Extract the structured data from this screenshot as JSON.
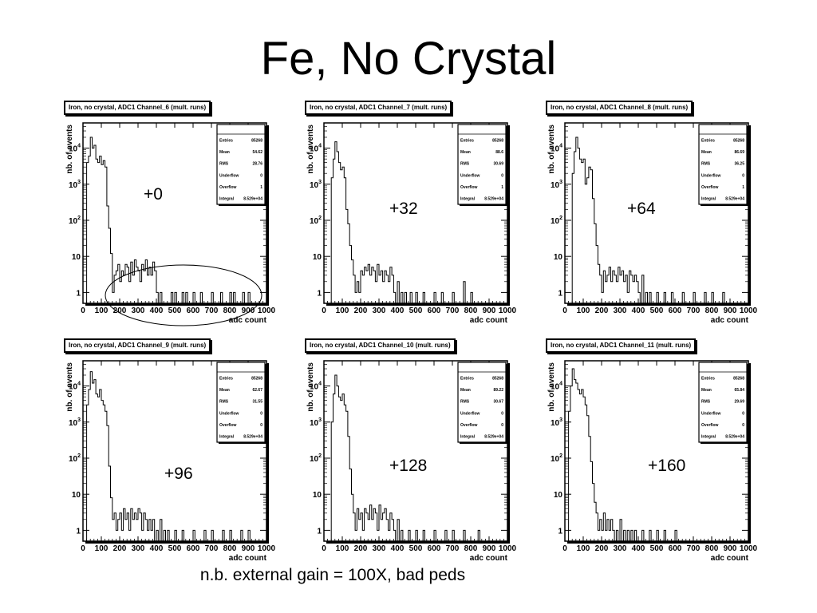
{
  "slide": {
    "title": "Fe, No Crystal",
    "footnote": "n.b. external gain = 100X, bad peds"
  },
  "chart_data": [
    {
      "type": "histogram",
      "title": "Iron, no crystal, ADC1 Channel_6 (mult. runs)",
      "annotation": "+0",
      "xlabel": "adc count",
      "ylabel": "nb. of events",
      "xlim": [
        0,
        1000
      ],
      "ylim": [
        0.5,
        50000
      ],
      "yscale": "log",
      "stats": {
        "Entries": "85268",
        "Mean": "54.62",
        "RMS": "28.76",
        "Underflow": "0",
        "Overflow": "1",
        "Integral": "8.529e+04"
      },
      "bin_width": 10,
      "bins": [
        [
          20,
          4000
        ],
        [
          30,
          6000
        ],
        [
          40,
          20000
        ],
        [
          50,
          10000
        ],
        [
          60,
          12000
        ],
        [
          70,
          5000
        ],
        [
          80,
          4000
        ],
        [
          90,
          6000
        ],
        [
          100,
          3500
        ],
        [
          110,
          4500
        ],
        [
          120,
          3000
        ],
        [
          130,
          250
        ],
        [
          140,
          60
        ],
        [
          150,
          12
        ],
        [
          160,
          1
        ],
        [
          170,
          3
        ],
        [
          180,
          4
        ],
        [
          190,
          6
        ],
        [
          200,
          2
        ],
        [
          210,
          4
        ],
        [
          220,
          3
        ],
        [
          230,
          6
        ],
        [
          240,
          5
        ],
        [
          250,
          2
        ],
        [
          260,
          7
        ],
        [
          270,
          3
        ],
        [
          280,
          8
        ],
        [
          290,
          5
        ],
        [
          300,
          4
        ],
        [
          310,
          2
        ],
        [
          320,
          6
        ],
        [
          330,
          4
        ],
        [
          340,
          8
        ],
        [
          350,
          3
        ],
        [
          360,
          5
        ],
        [
          370,
          3
        ],
        [
          380,
          7
        ],
        [
          390,
          4
        ],
        [
          400,
          1
        ],
        [
          420,
          1
        ],
        [
          480,
          1
        ],
        [
          500,
          1
        ],
        [
          540,
          1
        ],
        [
          560,
          1
        ],
        [
          600,
          1
        ],
        [
          640,
          1
        ],
        [
          700,
          1
        ],
        [
          750,
          1
        ],
        [
          800,
          1
        ],
        [
          820,
          1
        ],
        [
          870,
          1
        ],
        [
          900,
          1
        ]
      ]
    },
    {
      "type": "histogram",
      "title": "Iron, no crystal, ADC1 Channel_7 (mult. runs)",
      "annotation": "+32",
      "xlabel": "adc count",
      "ylabel": "nb. of events",
      "xlim": [
        0,
        1000
      ],
      "ylim": [
        0.5,
        50000
      ],
      "yscale": "log",
      "stats": {
        "Entries": "85268",
        "Mean": "88.6",
        "RMS": "30.69",
        "Underflow": "0",
        "Overflow": "1",
        "Integral": "8.529e+04"
      },
      "bin_width": 10,
      "bins": [
        [
          40,
          1500
        ],
        [
          50,
          5000
        ],
        [
          60,
          15000
        ],
        [
          70,
          8000
        ],
        [
          80,
          4000
        ],
        [
          90,
          2500
        ],
        [
          100,
          3000
        ],
        [
          110,
          1500
        ],
        [
          120,
          200
        ],
        [
          130,
          80
        ],
        [
          140,
          20
        ],
        [
          150,
          8
        ],
        [
          160,
          3
        ],
        [
          170,
          1
        ],
        [
          180,
          2
        ],
        [
          190,
          1
        ],
        [
          200,
          4
        ],
        [
          210,
          3
        ],
        [
          220,
          5
        ],
        [
          230,
          4
        ],
        [
          240,
          6
        ],
        [
          250,
          3
        ],
        [
          260,
          5
        ],
        [
          270,
          4
        ],
        [
          280,
          2
        ],
        [
          290,
          6
        ],
        [
          300,
          3
        ],
        [
          310,
          4
        ],
        [
          320,
          2
        ],
        [
          330,
          4
        ],
        [
          340,
          3
        ],
        [
          350,
          2
        ],
        [
          360,
          5
        ],
        [
          370,
          3
        ],
        [
          380,
          1
        ],
        [
          400,
          2
        ],
        [
          420,
          1
        ],
        [
          440,
          1
        ],
        [
          470,
          1
        ],
        [
          500,
          1
        ],
        [
          540,
          1
        ],
        [
          600,
          1
        ],
        [
          640,
          1
        ],
        [
          700,
          1
        ],
        [
          760,
          2
        ],
        [
          800,
          1
        ]
      ]
    },
    {
      "type": "histogram",
      "title": "Iron, no crystal, ADC1 Channel_8 (mult. runs)",
      "annotation": "+64",
      "xlabel": "adc count",
      "ylabel": "nb. of events",
      "xlim": [
        0,
        1000
      ],
      "ylim": [
        0.5,
        50000
      ],
      "yscale": "log",
      "stats": {
        "Entries": "85268",
        "Mean": "86.69",
        "RMS": "36.25",
        "Underflow": "0",
        "Overflow": "1",
        "Integral": "8.529e+04"
      },
      "bin_width": 10,
      "bins": [
        [
          40,
          2000
        ],
        [
          50,
          8000
        ],
        [
          60,
          20000
        ],
        [
          70,
          10000
        ],
        [
          80,
          5000
        ],
        [
          90,
          4000
        ],
        [
          100,
          5000
        ],
        [
          110,
          1000
        ],
        [
          120,
          1500
        ],
        [
          130,
          3000
        ],
        [
          140,
          2500
        ],
        [
          150,
          400
        ],
        [
          160,
          80
        ],
        [
          170,
          20
        ],
        [
          180,
          6
        ],
        [
          190,
          3
        ],
        [
          200,
          1
        ],
        [
          210,
          4
        ],
        [
          220,
          2
        ],
        [
          230,
          3
        ],
        [
          240,
          5
        ],
        [
          250,
          2
        ],
        [
          260,
          4
        ],
        [
          270,
          3
        ],
        [
          280,
          2
        ],
        [
          290,
          5
        ],
        [
          300,
          3
        ],
        [
          310,
          4
        ],
        [
          320,
          2
        ],
        [
          330,
          3
        ],
        [
          340,
          1
        ],
        [
          350,
          4
        ],
        [
          360,
          3
        ],
        [
          370,
          2
        ],
        [
          380,
          3
        ],
        [
          390,
          2
        ],
        [
          400,
          1
        ],
        [
          420,
          3
        ],
        [
          440,
          1
        ],
        [
          460,
          1
        ],
        [
          500,
          1
        ],
        [
          540,
          1
        ],
        [
          580,
          1
        ],
        [
          640,
          1
        ],
        [
          700,
          1
        ],
        [
          760,
          1
        ],
        [
          800,
          1
        ],
        [
          860,
          1
        ]
      ]
    },
    {
      "type": "histogram",
      "title": "Iron, no crystal, ADC1 Channel_9 (mult. runs)",
      "annotation": "+96",
      "xlabel": "adc count",
      "ylabel": "nb. of events",
      "xlim": [
        0,
        1000
      ],
      "ylim": [
        0.5,
        50000
      ],
      "yscale": "log",
      "stats": {
        "Entries": "85268",
        "Mean": "62.67",
        "RMS": "31.55",
        "Underflow": "0",
        "Overflow": "0",
        "Integral": "8.529e+04"
      },
      "bin_width": 10,
      "bins": [
        [
          20,
          3000
        ],
        [
          30,
          8000
        ],
        [
          40,
          25000
        ],
        [
          50,
          12000
        ],
        [
          60,
          15000
        ],
        [
          70,
          6000
        ],
        [
          80,
          5000
        ],
        [
          90,
          8000
        ],
        [
          100,
          4000
        ],
        [
          110,
          3000
        ],
        [
          120,
          2000
        ],
        [
          130,
          800
        ],
        [
          140,
          60
        ],
        [
          150,
          8
        ],
        [
          160,
          2
        ],
        [
          170,
          3
        ],
        [
          180,
          1
        ],
        [
          190,
          2
        ],
        [
          200,
          3
        ],
        [
          210,
          1
        ],
        [
          220,
          4
        ],
        [
          230,
          2
        ],
        [
          240,
          3
        ],
        [
          250,
          1
        ],
        [
          260,
          4
        ],
        [
          270,
          2
        ],
        [
          280,
          3
        ],
        [
          290,
          2
        ],
        [
          300,
          4
        ],
        [
          310,
          3
        ],
        [
          320,
          1
        ],
        [
          330,
          3
        ],
        [
          340,
          2
        ],
        [
          350,
          1
        ],
        [
          360,
          2
        ],
        [
          370,
          1
        ],
        [
          380,
          2
        ],
        [
          400,
          1
        ],
        [
          420,
          2
        ],
        [
          440,
          1
        ],
        [
          460,
          1
        ],
        [
          500,
          1
        ],
        [
          540,
          1
        ],
        [
          600,
          1
        ],
        [
          660,
          1
        ],
        [
          700,
          1
        ],
        [
          760,
          1
        ],
        [
          800,
          1
        ],
        [
          860,
          1
        ],
        [
          900,
          1
        ]
      ]
    },
    {
      "type": "histogram",
      "title": "Iron, no crystal, ADC1 Channel_10 (mult. runs)",
      "annotation": "+128",
      "xlabel": "adc count",
      "ylabel": "nb. of events",
      "xlim": [
        0,
        1000
      ],
      "ylim": [
        0.5,
        50000
      ],
      "yscale": "log",
      "stats": {
        "Entries": "85268",
        "Mean": "89.22",
        "RMS": "30.67",
        "Underflow": "0",
        "Overflow": "0",
        "Integral": "8.529e+04"
      },
      "bin_width": 10,
      "bins": [
        [
          40,
          1000
        ],
        [
          50,
          6000
        ],
        [
          60,
          20000
        ],
        [
          70,
          10000
        ],
        [
          80,
          5000
        ],
        [
          90,
          4000
        ],
        [
          100,
          6000
        ],
        [
          110,
          3000
        ],
        [
          120,
          2000
        ],
        [
          130,
          400
        ],
        [
          140,
          50
        ],
        [
          150,
          10
        ],
        [
          160,
          3
        ],
        [
          170,
          1
        ],
        [
          180,
          4
        ],
        [
          190,
          2
        ],
        [
          200,
          3
        ],
        [
          210,
          1
        ],
        [
          220,
          4
        ],
        [
          230,
          3
        ],
        [
          240,
          2
        ],
        [
          250,
          5
        ],
        [
          260,
          2
        ],
        [
          270,
          4
        ],
        [
          280,
          3
        ],
        [
          290,
          1
        ],
        [
          300,
          5
        ],
        [
          310,
          2
        ],
        [
          320,
          3
        ],
        [
          330,
          4
        ],
        [
          340,
          2
        ],
        [
          350,
          1
        ],
        [
          360,
          3
        ],
        [
          370,
          2
        ],
        [
          380,
          1
        ],
        [
          400,
          2
        ],
        [
          420,
          1
        ],
        [
          460,
          1
        ],
        [
          500,
          1
        ],
        [
          540,
          1
        ],
        [
          600,
          1
        ],
        [
          660,
          1
        ],
        [
          700,
          1
        ],
        [
          760,
          1
        ],
        [
          840,
          1
        ]
      ]
    },
    {
      "type": "histogram",
      "title": "Iron, no crystal, ADC1 Channel_11 (mult. runs)",
      "annotation": "+160",
      "xlabel": "adc count",
      "ylabel": "nb. of events",
      "xlim": [
        0,
        1000
      ],
      "ylim": [
        0.5,
        50000
      ],
      "yscale": "log",
      "stats": {
        "Entries": "85268",
        "Mean": "65.84",
        "RMS": "29.69",
        "Underflow": "0",
        "Overflow": "0",
        "Integral": "8.529e+04"
      },
      "bin_width": 10,
      "bins": [
        [
          20,
          2000
        ],
        [
          30,
          10000
        ],
        [
          40,
          30000
        ],
        [
          50,
          15000
        ],
        [
          60,
          12000
        ],
        [
          70,
          8000
        ],
        [
          80,
          6000
        ],
        [
          90,
          8000
        ],
        [
          100,
          5000
        ],
        [
          110,
          3000
        ],
        [
          120,
          1500
        ],
        [
          130,
          400
        ],
        [
          140,
          80
        ],
        [
          150,
          20
        ],
        [
          160,
          6
        ],
        [
          170,
          3
        ],
        [
          180,
          1
        ],
        [
          190,
          2
        ],
        [
          200,
          1
        ],
        [
          210,
          3
        ],
        [
          220,
          1
        ],
        [
          230,
          2
        ],
        [
          240,
          1
        ],
        [
          250,
          2
        ],
        [
          260,
          1
        ],
        [
          280,
          1
        ],
        [
          300,
          2
        ],
        [
          320,
          1
        ],
        [
          340,
          1
        ],
        [
          360,
          1
        ],
        [
          380,
          1
        ],
        [
          420,
          1
        ],
        [
          460,
          1
        ],
        [
          500,
          1
        ],
        [
          540,
          1
        ],
        [
          600,
          1
        ]
      ]
    }
  ]
}
